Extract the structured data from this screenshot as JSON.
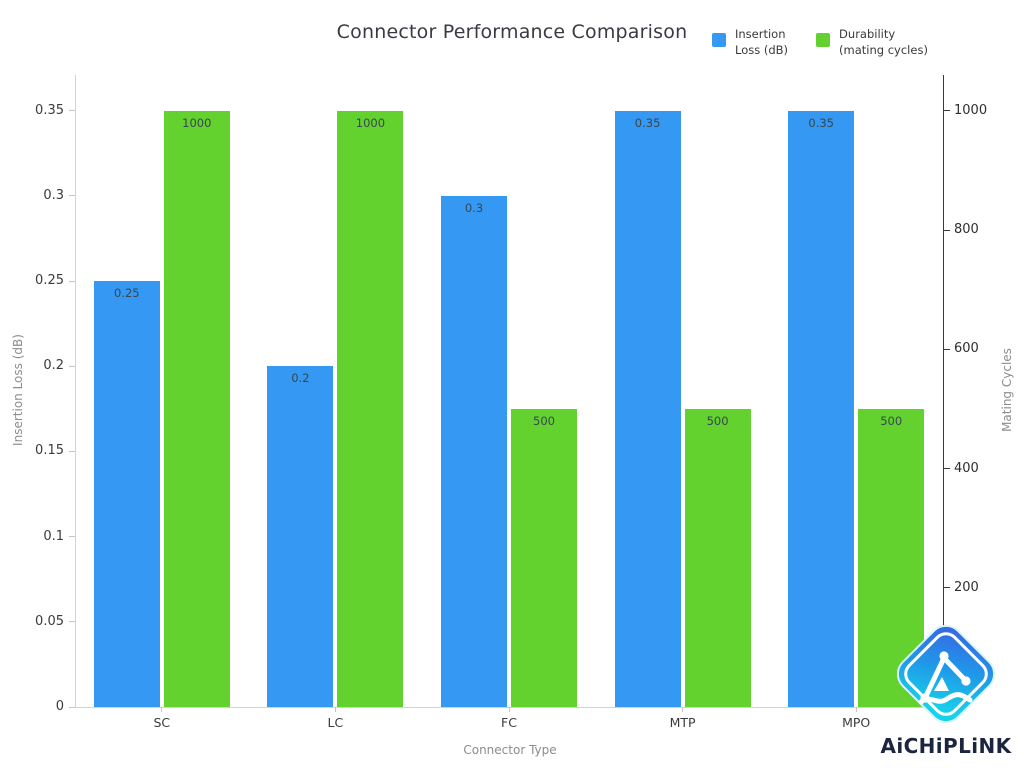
{
  "chart_data": {
    "type": "bar",
    "title": "Connector Performance Comparison",
    "categories": [
      "SC",
      "LC",
      "FC",
      "MTP",
      "MPO"
    ],
    "series": [
      {
        "name": "Insertion Loss (dB)",
        "legend_label": "Insertion\nLoss (dB)",
        "axis": "left",
        "color": "#3598f2",
        "values": [
          0.25,
          0.2,
          0.3,
          0.35,
          0.35
        ],
        "bar_labels": [
          "0.25",
          "0.2",
          "0.3",
          "0.35",
          "0.35"
        ]
      },
      {
        "name": "Durability (mating cycles)",
        "legend_label": "Durability\n(mating cycles)",
        "axis": "right",
        "color": "#63d22e",
        "values": [
          1000,
          1000,
          500,
          500,
          500
        ],
        "bar_labels": [
          "1000",
          "1000",
          "500",
          "500",
          "500"
        ]
      }
    ],
    "xlabel": "Connector Type",
    "ylabel_left": "Insertion Loss (dB)",
    "ylabel_right": "Mating Cycles",
    "yticks_left": [
      {
        "label": "0",
        "value": 0
      },
      {
        "label": "0.05",
        "value": 0.05
      },
      {
        "label": "0.1",
        "value": 0.1
      },
      {
        "label": "0.15",
        "value": 0.15
      },
      {
        "label": "0.2",
        "value": 0.2
      },
      {
        "label": "0.25",
        "value": 0.25
      },
      {
        "label": "0.3",
        "value": 0.3
      },
      {
        "label": "0.35",
        "value": 0.35
      }
    ],
    "yticks_right": [
      {
        "label": "200",
        "value": 200
      },
      {
        "label": "400",
        "value": 400
      },
      {
        "label": "600",
        "value": 600
      },
      {
        "label": "800",
        "value": 800
      },
      {
        "label": "1000",
        "value": 1000
      }
    ],
    "ylim_left": [
      0,
      0.371
    ],
    "ylim_right": [
      0,
      1060
    ],
    "grid": false,
    "legend_position": "top-right"
  },
  "branding": {
    "logo_text": "AiCHiPLiNK"
  }
}
